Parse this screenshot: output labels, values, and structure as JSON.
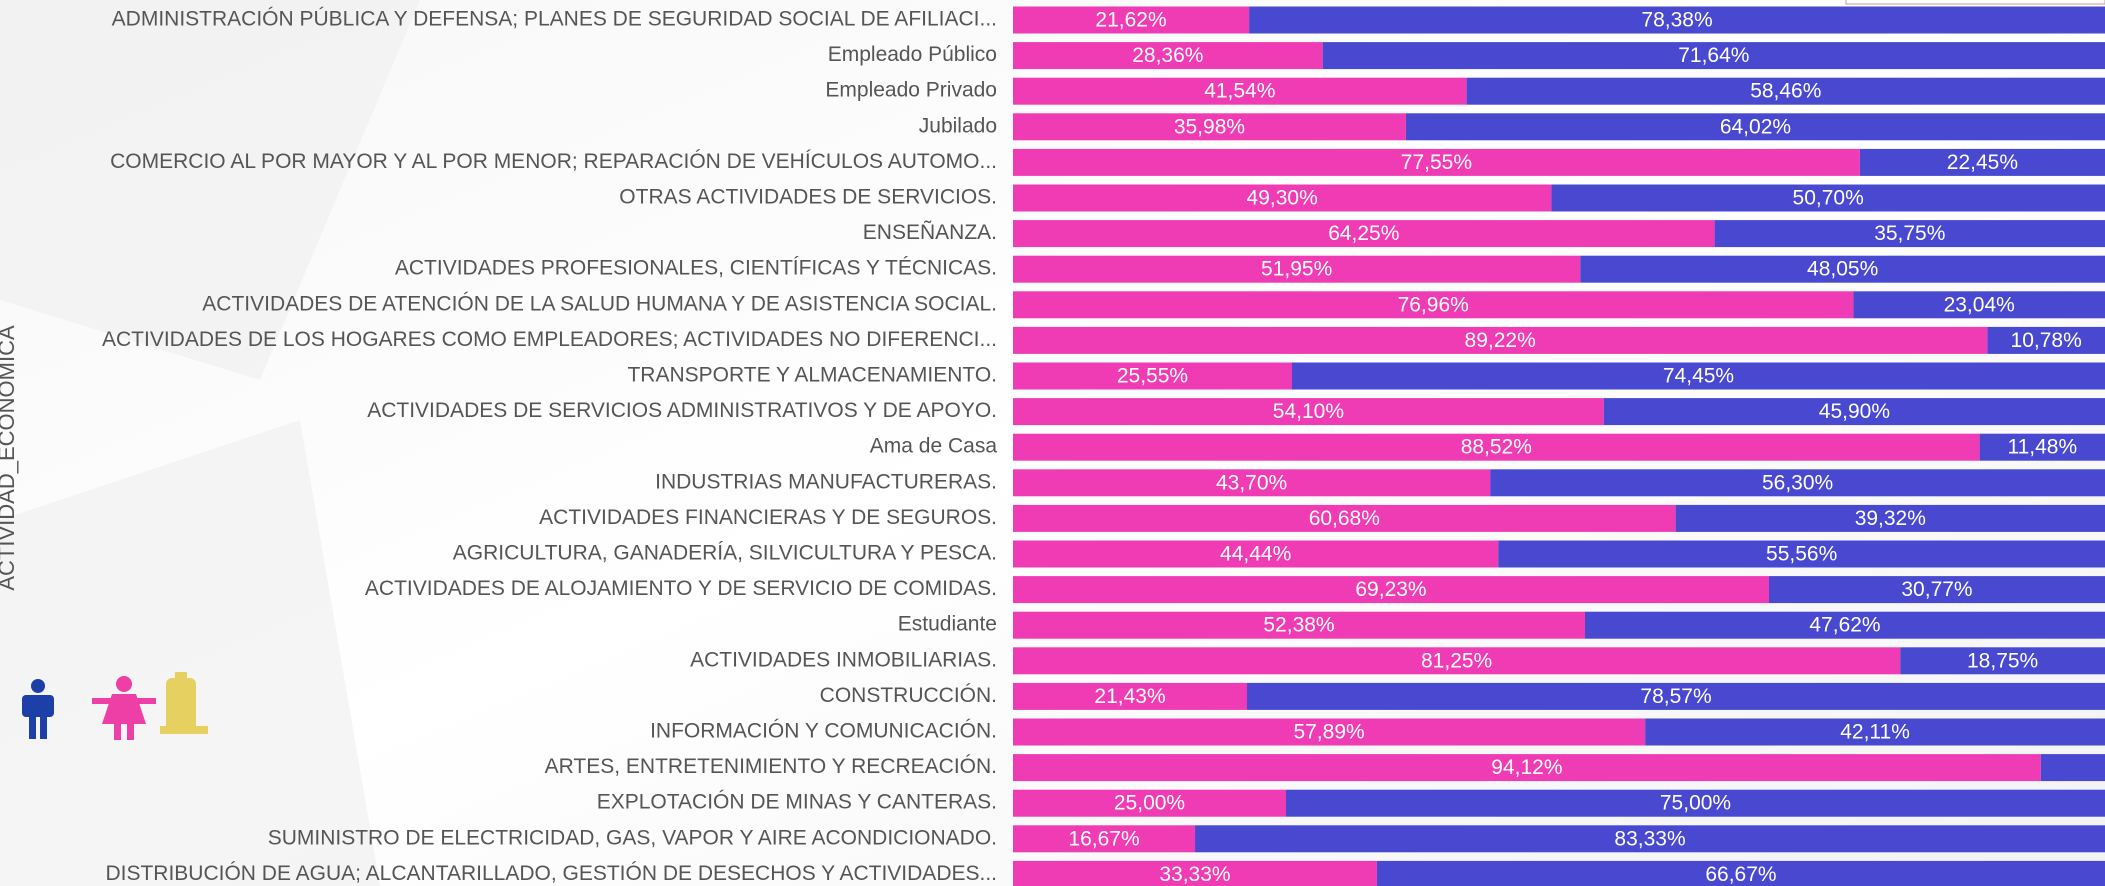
{
  "chart_data": {
    "type": "stacked_bar_horizontal_100",
    "y_axis_label": "ACTIVIDAD_ECONÓMICA",
    "categories": [
      "ADMINISTRACIÓN PÚBLICA Y DEFENSA; PLANES DE SEGURIDAD SOCIAL DE AFILIACI...",
      "Empleado Público",
      "Empleado Privado",
      "Jubilado",
      "COMERCIO AL POR MAYOR Y AL POR MENOR; REPARACIÓN DE VEHÍCULOS AUTOMO...",
      "OTRAS ACTIVIDADES DE SERVICIOS.",
      "ENSEÑANZA.",
      "ACTIVIDADES PROFESIONALES, CIENTÍFICAS Y TÉCNICAS.",
      "ACTIVIDADES DE ATENCIÓN DE LA SALUD HUMANA Y DE ASISTENCIA SOCIAL.",
      "ACTIVIDADES DE LOS HOGARES COMO EMPLEADORES; ACTIVIDADES NO DIFERENCI...",
      "TRANSPORTE Y ALMACENAMIENTO.",
      "ACTIVIDADES DE SERVICIOS ADMINISTRATIVOS Y DE APOYO.",
      "Ama de Casa",
      "INDUSTRIAS MANUFACTURERAS.",
      "ACTIVIDADES FINANCIERAS Y DE SEGUROS.",
      "AGRICULTURA, GANADERÍA, SILVICULTURA Y PESCA.",
      "ACTIVIDADES DE ALOJAMIENTO Y DE SERVICIO DE COMIDAS.",
      "Estudiante",
      "ACTIVIDADES INMOBILIARIAS.",
      "CONSTRUCCIÓN.",
      "INFORMACIÓN Y COMUNICACIÓN.",
      "ARTES, ENTRETENIMIENTO Y RECREACIÓN.",
      "EXPLOTACIÓN DE MINAS Y CANTERAS.",
      "SUMINISTRO DE ELECTRICIDAD, GAS, VAPOR Y AIRE ACONDICIONADO.",
      "DISTRIBUCIÓN DE AGUA; ALCANTARILLADO, GESTIÓN DE DESECHOS Y ACTIVIDADES..."
    ],
    "series": [
      {
        "color": "#f03cb4",
        "values": [
          21.62,
          28.36,
          41.54,
          35.98,
          77.55,
          49.3,
          64.25,
          51.95,
          76.96,
          89.22,
          25.55,
          54.1,
          88.52,
          43.7,
          60.68,
          44.44,
          69.23,
          52.38,
          81.25,
          21.43,
          57.89,
          94.12,
          25.0,
          16.67,
          33.33
        ],
        "value_labels": [
          "21,62%",
          "28,36%",
          "41,54%",
          "35,98%",
          "77,55%",
          "49,30%",
          "64,25%",
          "51,95%",
          "76,96%",
          "89,22%",
          "25,55%",
          "54,10%",
          "88,52%",
          "43,70%",
          "60,68%",
          "44,44%",
          "69,23%",
          "52,38%",
          "81,25%",
          "21,43%",
          "57,89%",
          "94,12%",
          "25,00%",
          "16,67%",
          "33,33%"
        ]
      },
      {
        "color": "#4848d0",
        "values": [
          78.38,
          71.64,
          58.46,
          64.02,
          22.45,
          50.7,
          35.75,
          48.05,
          23.04,
          10.78,
          74.45,
          45.9,
          11.48,
          56.3,
          39.32,
          55.56,
          30.77,
          47.62,
          18.75,
          78.57,
          42.11,
          5.88,
          75.0,
          83.33,
          66.67
        ],
        "value_labels": [
          "78,38%",
          "71,64%",
          "58,46%",
          "64,02%",
          "22,45%",
          "50,70%",
          "35,75%",
          "48,05%",
          "23,04%",
          "10,78%",
          "74,45%",
          "45,90%",
          "11,48%",
          "56,30%",
          "39,32%",
          "55,56%",
          "30,77%",
          "47,62%",
          "18,75%",
          "78,57%",
          "42,11%",
          null,
          "75,00%",
          "83,33%",
          "66,67%"
        ]
      }
    ],
    "xlim": [
      0,
      100
    ]
  }
}
